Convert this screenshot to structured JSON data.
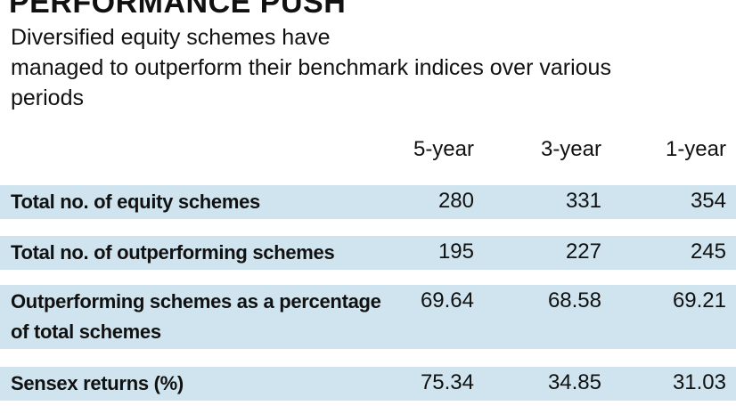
{
  "header": {
    "title": "PERFORMANCE PUSH",
    "subtitle": [
      "Diversified equity schemes have",
      "managed to outperform their benchmark indices over various",
      "periods"
    ]
  },
  "table": {
    "columns": [
      "5-year",
      "3-year",
      "1-year"
    ],
    "rows": [
      {
        "label": "Total no. of equity schemes",
        "values": [
          280,
          331,
          354
        ]
      },
      {
        "label": "Total no. of outperforming schemes",
        "values": [
          195,
          227,
          245
        ]
      },
      {
        "label": "Outperforming schemes as a percentage of total schemes",
        "values": [
          69.64,
          68.58,
          69.21
        ]
      },
      {
        "label": "Sensex returns (%)",
        "values": [
          75.34,
          34.85,
          31.03
        ]
      }
    ]
  }
}
